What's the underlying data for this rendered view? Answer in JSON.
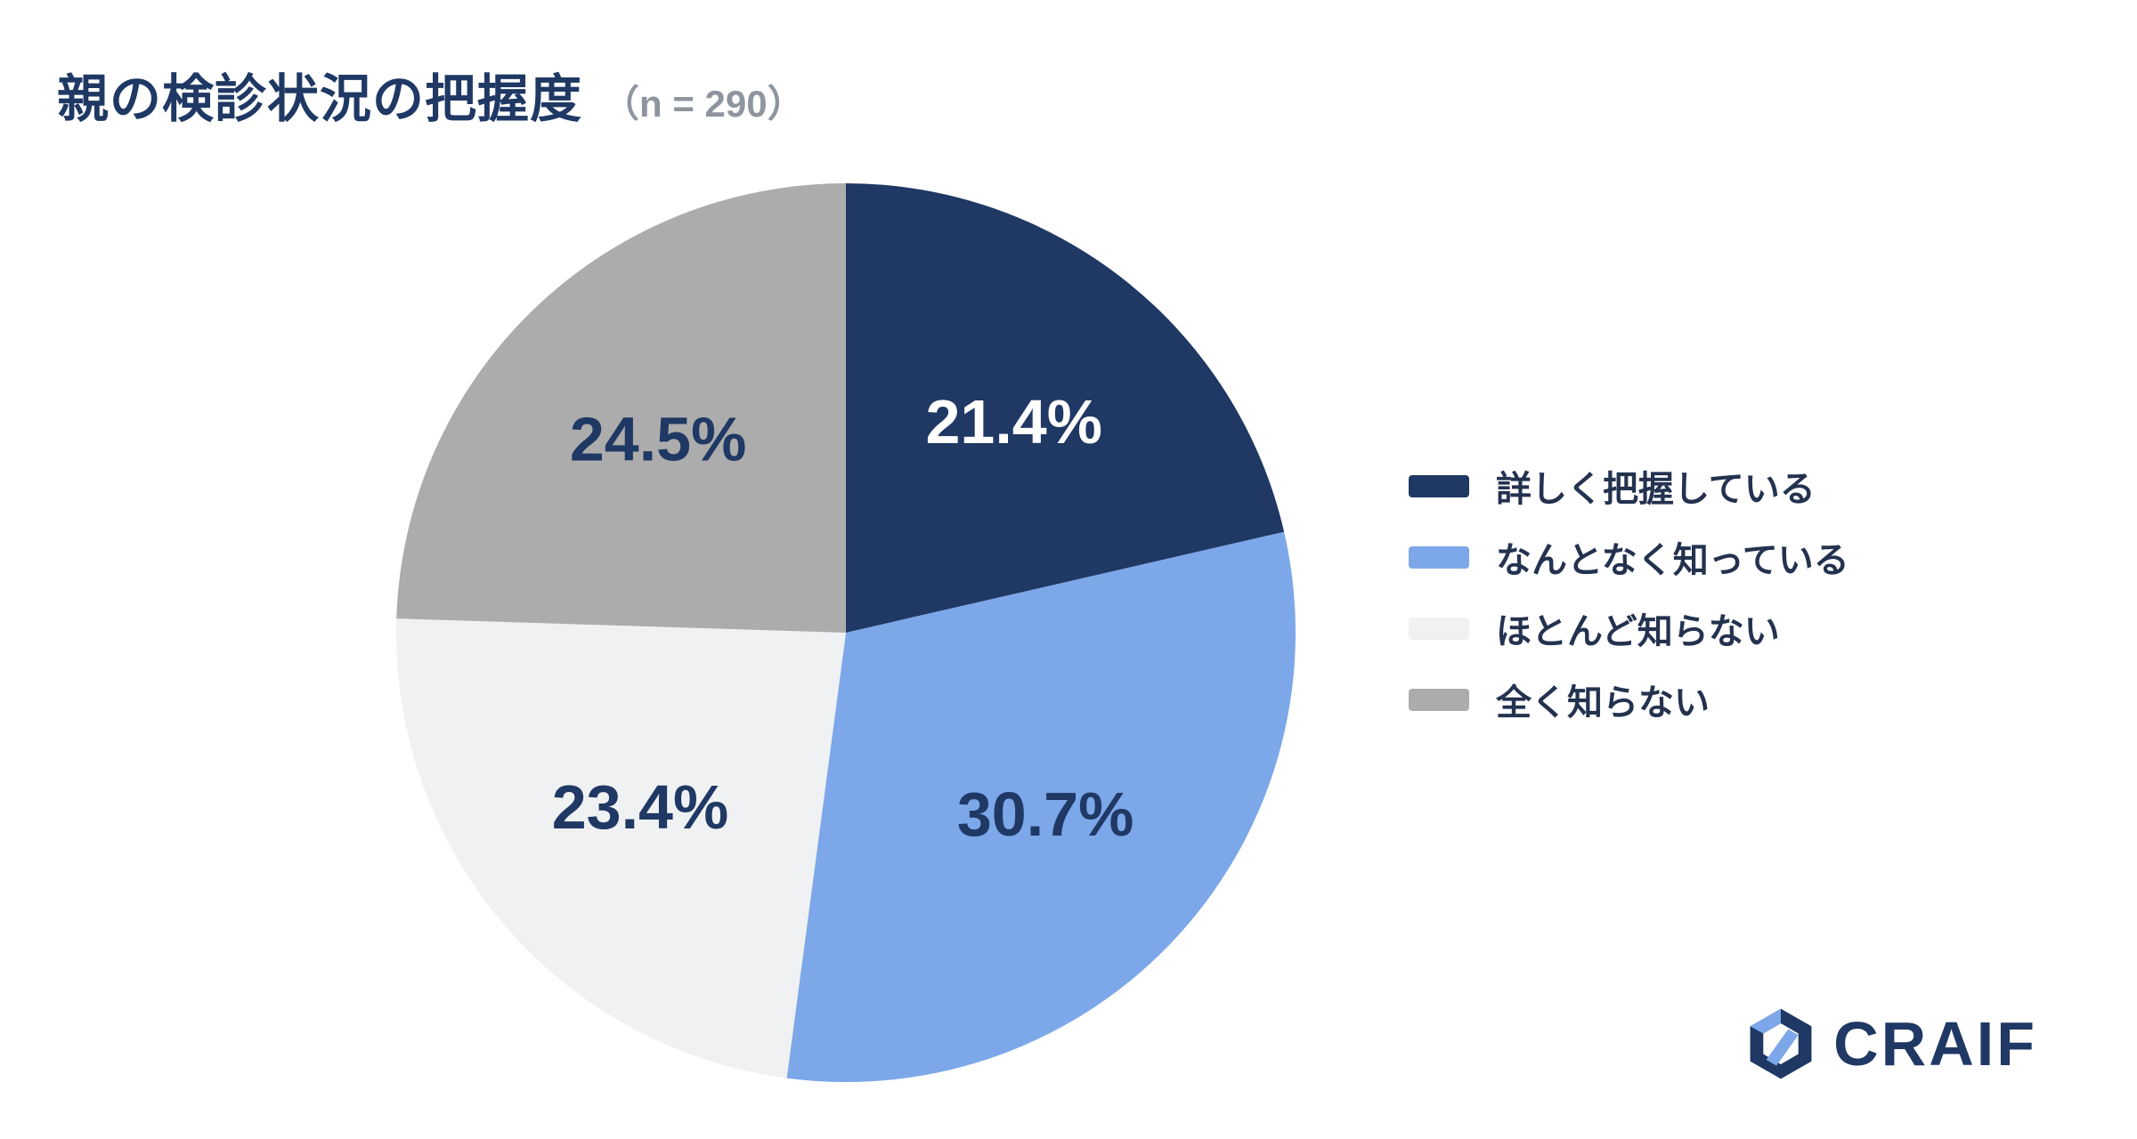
{
  "header": {
    "title": "親の検診状況の把握度",
    "subtitle": "（n = 290）"
  },
  "chart_data": {
    "type": "pie",
    "title": "親の検診状況の把握度",
    "sample_size_label": "（n = 290）",
    "n": 290,
    "start_angle_deg": 0,
    "direction": "clockwise",
    "value_format": "percent",
    "legend_position": "right",
    "slices": [
      {
        "label": "詳しく把握している",
        "value": 21.4,
        "color": "#1F3864",
        "text_color": "#FFFFFF"
      },
      {
        "label": "なんとなく知っている",
        "value": 30.7,
        "color": "#7CA7E9",
        "text_color": "#1F3864"
      },
      {
        "label": "ほとんど知らない",
        "value": 23.4,
        "color": "#F0F1F3",
        "text_color": "#1F3864"
      },
      {
        "label": "全く知らない",
        "value": 24.5,
        "color": "#ACACAC",
        "text_color": "#1F3864"
      }
    ]
  },
  "logo": {
    "text": "CRAIF",
    "accent_color": "#7CA7E9",
    "brand_color": "#1F3864"
  }
}
